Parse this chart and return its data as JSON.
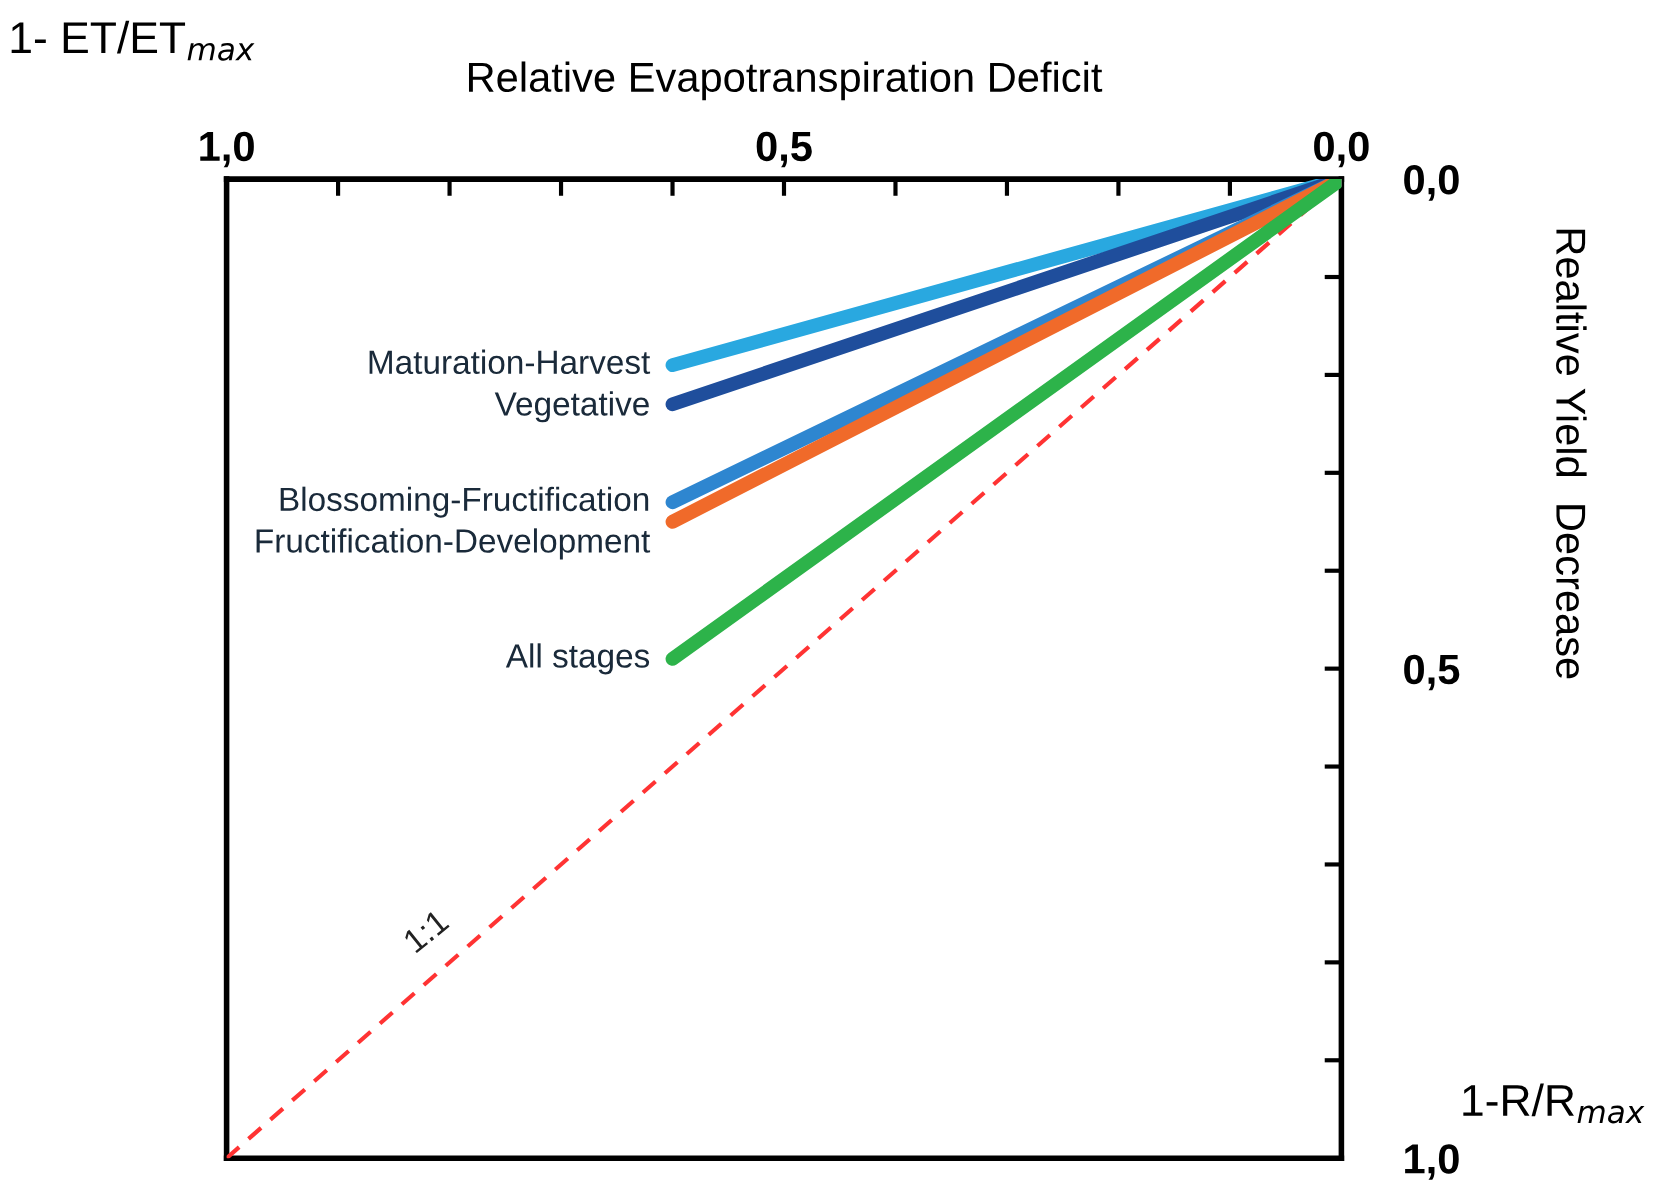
{
  "chart_data": {
    "type": "line",
    "xlabel": "Relative Evapotranspiration Deficit",
    "ylabel": "Realtive Yield  Decrease",
    "annotations": [
      "1- ET/ET$_{max}$",
      "1-R/R$_{max}$"
    ],
    "xlim": [
      1.0,
      0.0
    ],
    "ylim": [
      1.0,
      0.0
    ],
    "xticks": [
      {
        "value": 1.0,
        "label": "1,0"
      },
      {
        "value": 0.9,
        "label": null
      },
      {
        "value": 0.8,
        "label": null
      },
      {
        "value": 0.7,
        "label": null
      },
      {
        "value": 0.6,
        "label": null
      },
      {
        "value": 0.5,
        "label": "0,5"
      },
      {
        "value": 0.4,
        "label": null
      },
      {
        "value": 0.3,
        "label": null
      },
      {
        "value": 0.2,
        "label": null
      },
      {
        "value": 0.1,
        "label": null
      },
      {
        "value": 0.0,
        "label": "0,0"
      }
    ],
    "yticks": [
      {
        "value": 0.0,
        "label": "0,0"
      },
      {
        "value": 0.1,
        "label": null
      },
      {
        "value": 0.2,
        "label": null
      },
      {
        "value": 0.3,
        "label": null
      },
      {
        "value": 0.4,
        "label": null
      },
      {
        "value": 0.5,
        "label": "0,5"
      },
      {
        "value": 0.6,
        "label": null
      },
      {
        "value": 0.7,
        "label": null
      },
      {
        "value": 0.8,
        "label": null
      },
      {
        "value": 0.9,
        "label": null
      },
      {
        "value": 1.0,
        "label": "1,0"
      }
    ],
    "grid": false,
    "legend": false,
    "marker": "none",
    "series": [
      {
        "name": "Maturation-Harvest",
        "color": "#29a8e0",
        "x": [
          0.6,
          0.0
        ],
        "values": [
          0.19,
          0.0
        ]
      },
      {
        "name": "Vegetative",
        "color": "#1f4e9c",
        "x": [
          0.6,
          0.0
        ],
        "values": [
          0.23,
          0.0
        ]
      },
      {
        "name": "Blossoming-Fructification",
        "color": "#2e86d0",
        "x": [
          0.6,
          0.0
        ],
        "values": [
          0.33,
          0.0
        ]
      },
      {
        "name": "Fructification-Development",
        "color": "#f06a2a",
        "x": [
          0.6,
          0.0
        ],
        "values": [
          0.35,
          0.0
        ]
      },
      {
        "name": "All stages",
        "color": "#2db34a",
        "x": [
          0.6,
          0.0
        ],
        "values": [
          0.49,
          0.0
        ]
      },
      {
        "name": "1:1",
        "color": "#ff3333",
        "line_style": "dashed",
        "x": [
          1.0,
          0.0
        ],
        "values": [
          1.0,
          0.0
        ]
      }
    ]
  }
}
